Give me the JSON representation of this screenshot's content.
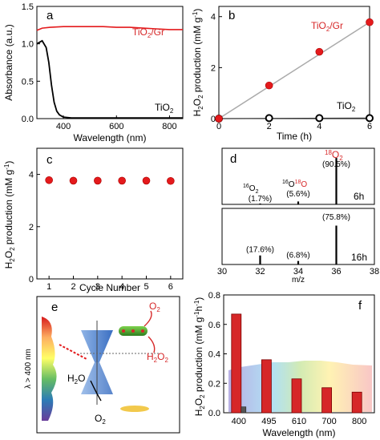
{
  "chart_data": [
    {
      "panel": "a",
      "type": "line",
      "ylabel": "Absorbance (a.u.)",
      "xlabel": "Wavelength (nm)",
      "xlim": [
        300,
        850
      ],
      "ylim": [
        0.0,
        1.5
      ],
      "xticks": [
        "400",
        "600",
        "800"
      ],
      "yticks": [
        "0.0",
        "0.5",
        "1.0",
        "1.5"
      ],
      "series": [
        {
          "name": "TiO2/Gr",
          "color": "#e41a1c",
          "x": [
            300,
            320,
            350,
            400,
            450,
            500,
            550,
            600,
            650,
            700,
            750,
            800,
            850
          ],
          "y": [
            1.18,
            1.21,
            1.22,
            1.23,
            1.23,
            1.23,
            1.23,
            1.22,
            1.22,
            1.21,
            1.2,
            1.19,
            1.19
          ]
        },
        {
          "name": "TiO2",
          "color": "#000000",
          "x": [
            300,
            320,
            335,
            345,
            355,
            365,
            375,
            385,
            400,
            430,
            500,
            600,
            700,
            800,
            850
          ],
          "y": [
            1.0,
            1.04,
            0.95,
            0.75,
            0.45,
            0.22,
            0.1,
            0.05,
            0.02,
            0.01,
            0.01,
            0.01,
            0.01,
            0.01,
            0.01
          ]
        }
      ]
    },
    {
      "panel": "b",
      "type": "line",
      "ylabel": "H2O2 production (mM g-1)",
      "xlabel": "Time (h)",
      "xlim": [
        0,
        6
      ],
      "ylim": [
        0,
        4.4
      ],
      "xticks": [
        "0",
        "2",
        "4",
        "6"
      ],
      "yticks": [
        "0",
        "2",
        "4"
      ],
      "series": [
        {
          "name": "TiO2/Gr",
          "color": "#e41a1c",
          "x": [
            0,
            2,
            4,
            6
          ],
          "y": [
            0,
            1.3,
            2.62,
            3.78
          ]
        },
        {
          "name": "TiO2",
          "color": "#000000",
          "x": [
            0,
            2,
            4,
            6
          ],
          "y": [
            0,
            0.02,
            0.02,
            0.02
          ]
        }
      ]
    },
    {
      "panel": "c",
      "type": "scatter",
      "ylabel": "H2O2 production (mM g-1)",
      "xlabel": "Cycle Number",
      "xlim": [
        0.5,
        6.5
      ],
      "ylim": [
        0,
        5
      ],
      "xticks": [
        "1",
        "2",
        "3",
        "4",
        "5",
        "6"
      ],
      "yticks": [
        "0",
        "2",
        "4"
      ],
      "series": [
        {
          "color": "#e41a1c",
          "x": [
            1,
            2,
            3,
            4,
            5,
            6
          ],
          "y": [
            3.78,
            3.76,
            3.76,
            3.76,
            3.76,
            3.75
          ]
        }
      ]
    },
    {
      "panel": "d",
      "type": "bar",
      "xlabel": "m/z",
      "xlim": [
        30,
        38
      ],
      "xticks": [
        "30",
        "32",
        "34",
        "36",
        "38"
      ],
      "subplots": [
        {
          "label": "6h",
          "x": [
            32,
            34,
            36
          ],
          "values": [
            1.7,
            5.6,
            90.5
          ],
          "annotations": [
            "(1.7%)",
            "(5.6%)",
            "(90.5%)"
          ]
        },
        {
          "label": "16h",
          "x": [
            32,
            34,
            36
          ],
          "values": [
            17.6,
            6.8,
            75.8
          ],
          "annotations": [
            "(17.6%)",
            "(6.8%)",
            "(75.8%)"
          ]
        }
      ]
    },
    {
      "panel": "f",
      "type": "bar",
      "ylabel": "H2O2 production (mM g-1h-1)",
      "xlabel": "Wavelength (nm)",
      "categories": [
        "400",
        "495",
        "610",
        "700",
        "800"
      ],
      "ylim": [
        0,
        0.8
      ],
      "yticks": [
        "0.0",
        "0.2",
        "0.4",
        "0.6",
        "0.8"
      ],
      "series": [
        {
          "color": "#e41a1c",
          "values": [
            0.67,
            0.36,
            0.23,
            0.17,
            0.14
          ]
        },
        {
          "color": "#555555",
          "values": [
            0.04,
            0,
            0,
            0,
            0
          ]
        }
      ]
    }
  ],
  "labels": {
    "a": "a",
    "b": "b",
    "c": "c",
    "d": "d",
    "e": "e",
    "f": "f",
    "a_ylabel": "Absorbance (a.u.)",
    "a_xlabel": "Wavelength (nm)",
    "b_xlabel": "Time (h)",
    "c_xlabel": "Cycle Number",
    "d_xlabel": "m/z",
    "f_xlabel": "Wavelength (nm)",
    "tio2gr": "TiO",
    "gr": "/Gr",
    "tio2": "TiO",
    "sub2": "2",
    "ylab_h2o2_a": "H",
    "ylab_h2o2_b": "O",
    "ylab_prod": " production (mM g",
    "ylab_sup_b": "-1",
    "ylab_sup_f": "-1",
    "ylab_h": "h",
    "ylab_close": ")",
    "d_16o2_a": "16",
    "d_16o2_b": "O",
    "d_16o18o_a": "16",
    "d_16o18o_b": "O",
    "d_16o18o_c": "18",
    "d_16o18o_d": "O",
    "d_18o2_a": "18",
    "d_18o2_b": "O",
    "d_6h": "6h",
    "d_16h": "16h",
    "e_lambda": "λ > 400 nm",
    "e_o2": "O",
    "e_h2o2": "H",
    "e_h2o": "H",
    "e_o2b": "O",
    "e_h2o_tail": "O",
    "e_h2o2_mid": "O"
  },
  "colors": {
    "red": "#d62728",
    "black": "#000000",
    "gray": "#555555"
  }
}
